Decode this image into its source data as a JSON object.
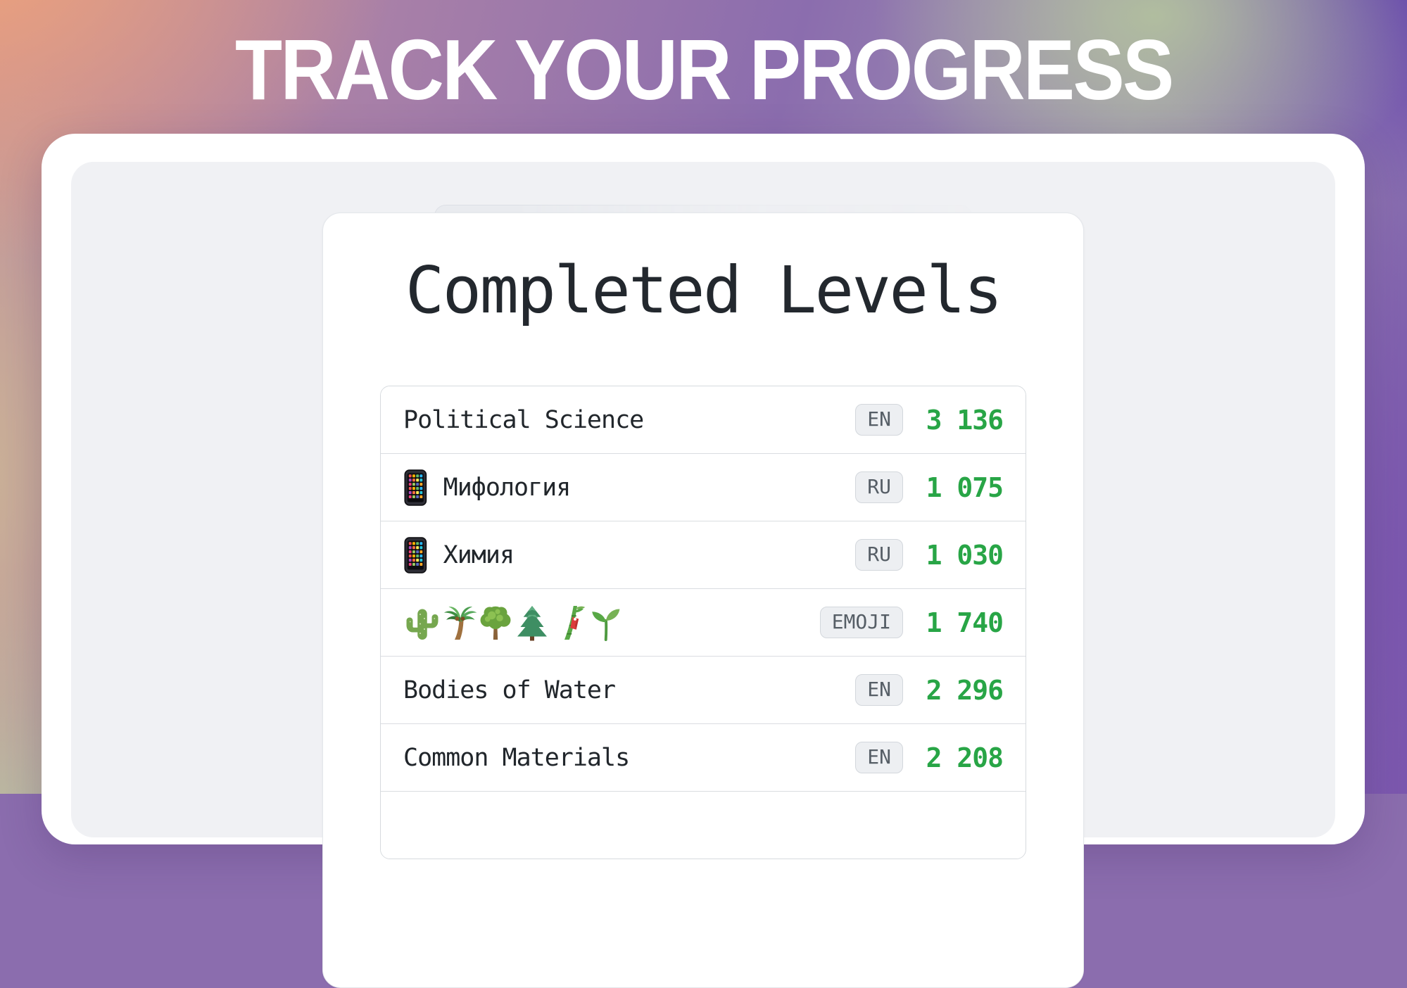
{
  "header": {
    "title": "TRACK YOUR PROGRESS"
  },
  "card": {
    "title": "Completed Levels"
  },
  "table": {
    "rows": [
      {
        "label": "Political Science",
        "icons": [],
        "badge": "EN",
        "count": "3 136"
      },
      {
        "label": "Мифология",
        "icons": [
          "mobile-phone"
        ],
        "badge": "RU",
        "count": "1 075"
      },
      {
        "label": "Химия",
        "icons": [
          "mobile-phone"
        ],
        "badge": "RU",
        "count": "1 030"
      },
      {
        "label": "",
        "icons": [
          "cactus",
          "palm-tree",
          "deciduous-tree",
          "evergreen-tree",
          "tanabata-tree",
          "seedling"
        ],
        "badge": "EMOJI",
        "count": "1 740"
      },
      {
        "label": "Bodies of Water",
        "icons": [],
        "badge": "EN",
        "count": "2 296"
      },
      {
        "label": "Common Materials",
        "icons": [],
        "badge": "EN",
        "count": "2 208"
      }
    ]
  },
  "colors": {
    "accent_green": "#28a546",
    "panel_gray": "#f0f1f4",
    "badge_background": "#edeff2"
  }
}
